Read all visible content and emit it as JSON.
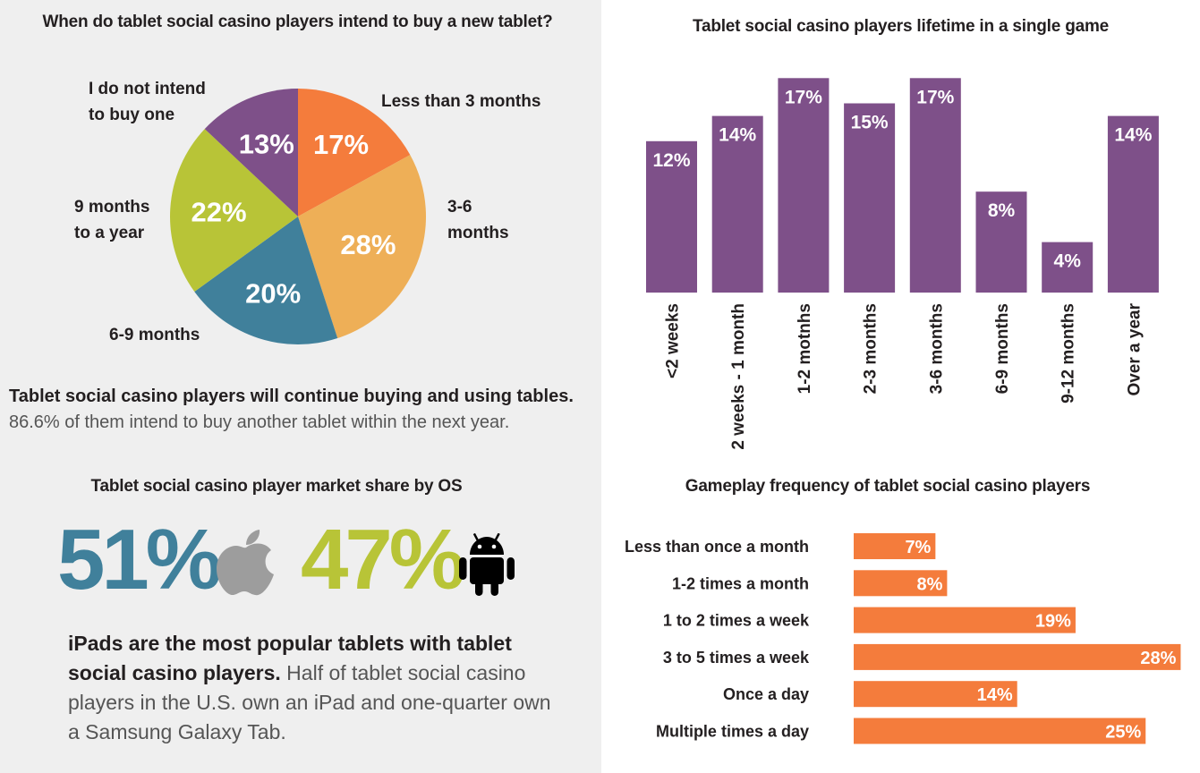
{
  "colors": {
    "purple": "#7e5089",
    "orange": "#f47c3c",
    "light_orange": "#eeaf57",
    "teal": "#40809b",
    "lime": "#b8c437",
    "apple_gray": "#9d9d9d",
    "android_black": "#000000"
  },
  "os_share": {
    "title": "Tablet social casino player market share by OS",
    "ios_value": "51%",
    "ios_icon": "apple-icon",
    "android_value": "47%",
    "android_icon": "android-icon",
    "para_bold": "iPads are the most popular tablets with tablet social casino players.",
    "para_rest": " Half of tablet social casino players in the U.S. own an iPad and one-quarter own a Samsung Galaxy Tab."
  },
  "summary": {
    "bold": "Tablet social casino players will continue buying and using tables.",
    "rest": "86.6% of them intend to buy another tablet within the next year."
  },
  "chart_data": [
    {
      "type": "pie",
      "title": "When do tablet social casino players intend to buy a new tablet?",
      "categories": [
        "Less than 3 months",
        "3-6 months",
        "6-9 months",
        "9 months to a year",
        "I do not intend to buy one"
      ],
      "category_labels": [
        "Less than 3 months",
        "3-6\nmonths",
        "6-9 months",
        "9 months\nto a year",
        "I do not intend\nto buy one"
      ],
      "values": [
        17,
        28,
        20,
        22,
        13
      ],
      "value_labels": [
        "17%",
        "28%",
        "20%",
        "22%",
        "13%"
      ],
      "colors": [
        "#f47c3c",
        "#eeaf57",
        "#40809b",
        "#b8c437",
        "#7e5089"
      ]
    },
    {
      "type": "bar",
      "title": "Tablet social casino players lifetime in a single game",
      "categories": [
        "<2 weeks",
        "2 weeks - 1 month",
        "1-2 motnhs",
        "2-3 months",
        "3-6 months",
        "6-9 months",
        "9-12 months",
        "Over a year"
      ],
      "values": [
        12,
        14,
        17,
        15,
        17,
        8,
        4,
        14
      ],
      "value_labels": [
        "12%",
        "14%",
        "17%",
        "15%",
        "17%",
        "8%",
        "4%",
        "14%"
      ],
      "color": "#7e5089",
      "ylim": [
        0,
        20
      ]
    },
    {
      "type": "bar",
      "orientation": "horizontal",
      "title": "Gameplay frequency of tablet social casino players",
      "categories": [
        "Less than once a month",
        "1-2 times a month",
        "1 to 2 times a week",
        "3 to 5 times a week",
        "Once a day",
        "Multiple times a day"
      ],
      "values": [
        7,
        8,
        19,
        28,
        14,
        25
      ],
      "value_labels": [
        "7%",
        "8%",
        "19%",
        "28%",
        "14%",
        "25%"
      ],
      "color": "#f47c3c",
      "xlim": [
        0,
        28
      ]
    }
  ]
}
